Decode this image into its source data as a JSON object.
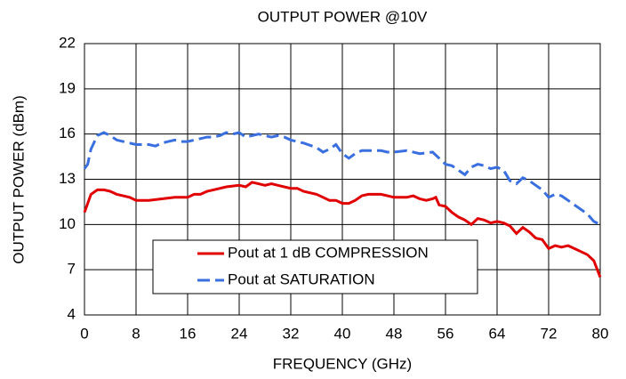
{
  "chart_data": {
    "type": "line",
    "title": "OUTPUT POWER @10V",
    "x_label": "FREQUENCY (GHz)",
    "y_label": "OUTPUT POWER (dBm)",
    "xlim": [
      0,
      80
    ],
    "xticks": [
      0,
      8,
      16,
      24,
      32,
      40,
      48,
      56,
      64,
      72,
      80
    ],
    "ylim": [
      4,
      22
    ],
    "yticks": [
      4,
      7,
      10,
      13,
      16,
      19,
      22
    ],
    "grid": true,
    "series": [
      {
        "name": "Pout at 1 dB COMPRESSION",
        "color": "#e00000",
        "dashed": false,
        "x": [
          0,
          1,
          2,
          3,
          4,
          5,
          6,
          7,
          8,
          10,
          12,
          14,
          16,
          17,
          18,
          19,
          20,
          22,
          24,
          25,
          26,
          27,
          28,
          29,
          30,
          32,
          33,
          34,
          36,
          37,
          38,
          39,
          40,
          41,
          42,
          43,
          44,
          46,
          47,
          48,
          49,
          50,
          51,
          52,
          53,
          54,
          54.5,
          55,
          56,
          57,
          58,
          59,
          60,
          61,
          62,
          63,
          64,
          65,
          66,
          67,
          68,
          69,
          70,
          71,
          72,
          73,
          74,
          75,
          76,
          77,
          78,
          79,
          80
        ],
        "values": [
          10.8,
          12.0,
          12.3,
          12.3,
          12.2,
          12.0,
          11.9,
          11.8,
          11.6,
          11.6,
          11.7,
          11.8,
          11.8,
          12.0,
          12.0,
          12.2,
          12.3,
          12.5,
          12.6,
          12.5,
          12.8,
          12.7,
          12.6,
          12.7,
          12.6,
          12.4,
          12.4,
          12.2,
          12.0,
          11.8,
          11.6,
          11.6,
          11.4,
          11.4,
          11.6,
          11.9,
          12.0,
          12.0,
          11.9,
          11.8,
          11.8,
          11.8,
          11.9,
          11.7,
          11.6,
          11.7,
          11.8,
          11.3,
          11.2,
          10.8,
          10.5,
          10.3,
          10.0,
          10.4,
          10.3,
          10.1,
          10.2,
          10.1,
          9.9,
          9.4,
          9.8,
          9.5,
          9.1,
          9.0,
          8.4,
          8.6,
          8.5,
          8.6,
          8.4,
          8.2,
          8.0,
          7.6,
          6.5
        ]
      },
      {
        "name": "Pout at SATURATION",
        "color": "#3a6fe0",
        "dashed": true,
        "x": [
          0,
          0.5,
          1,
          2,
          3,
          4,
          5,
          6,
          7,
          8,
          9,
          10,
          11,
          12,
          13,
          14,
          15,
          16,
          17,
          18,
          19,
          20,
          21,
          22,
          23,
          24,
          25,
          26,
          27,
          28,
          29,
          30,
          31,
          32,
          34,
          36,
          37,
          38,
          39,
          40,
          41,
          42,
          43,
          44,
          46,
          47,
          48,
          50,
          52,
          54,
          55,
          56,
          57,
          58,
          59,
          60,
          61,
          62,
          63,
          64,
          65,
          66,
          67,
          68,
          69,
          70,
          71,
          72,
          73,
          74,
          75,
          76,
          77,
          78,
          79,
          80
        ],
        "values": [
          13.7,
          14.0,
          15.0,
          15.9,
          16.1,
          15.9,
          15.6,
          15.5,
          15.4,
          15.3,
          15.3,
          15.3,
          15.2,
          15.4,
          15.5,
          15.6,
          15.5,
          15.5,
          15.6,
          15.7,
          15.8,
          15.8,
          15.9,
          16.1,
          16.0,
          16.1,
          15.8,
          15.9,
          16.0,
          15.9,
          15.8,
          15.9,
          15.8,
          15.6,
          15.4,
          15.1,
          14.8,
          15.0,
          15.3,
          14.7,
          14.4,
          14.7,
          14.9,
          14.9,
          14.9,
          14.8,
          14.8,
          14.9,
          14.7,
          14.8,
          14.4,
          14.0,
          13.9,
          13.6,
          13.3,
          13.8,
          14.0,
          13.9,
          13.7,
          13.8,
          13.6,
          12.9,
          12.7,
          13.1,
          12.9,
          12.6,
          12.3,
          11.8,
          12.0,
          11.9,
          11.6,
          11.3,
          11.0,
          10.7,
          10.2,
          10.0
        ]
      }
    ]
  }
}
